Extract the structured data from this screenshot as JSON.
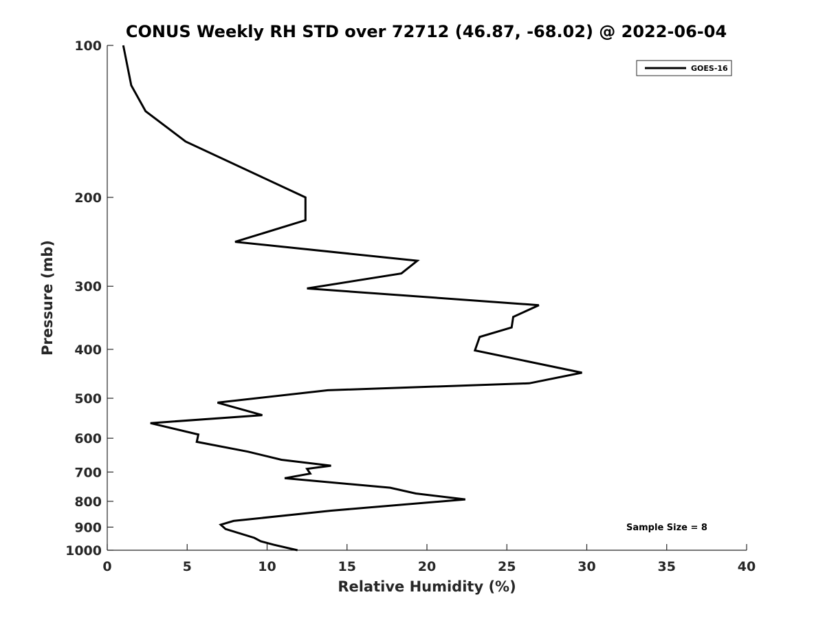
{
  "chart_data": {
    "type": "line",
    "title": "CONUS Weekly RH STD over 72712 (46.87, -68.02) @ 2022-06-04",
    "xlabel": "Relative Humidity (%)",
    "ylabel": "Pressure (mb)",
    "xlim": [
      0,
      40
    ],
    "ylim": [
      100,
      1000
    ],
    "y_scale": "log",
    "y_reversed": true,
    "x_ticks": [
      0,
      5,
      10,
      15,
      20,
      25,
      30,
      35,
      40
    ],
    "y_ticks": [
      100,
      200,
      300,
      400,
      500,
      600,
      700,
      800,
      900,
      1000
    ],
    "legend_position": "top-right",
    "series": [
      {
        "name": "GOES-16",
        "color": "#000000",
        "points": [
          [
            1.0,
            100
          ],
          [
            1.5,
            120
          ],
          [
            2.4,
            135
          ],
          [
            4.9,
            155
          ],
          [
            12.4,
            200
          ],
          [
            12.4,
            222
          ],
          [
            8.0,
            245
          ],
          [
            19.4,
            267
          ],
          [
            18.4,
            283
          ],
          [
            12.5,
            303
          ],
          [
            27.0,
            327
          ],
          [
            25.4,
            345
          ],
          [
            25.3,
            362
          ],
          [
            23.3,
            378
          ],
          [
            23.0,
            402
          ],
          [
            29.7,
            445
          ],
          [
            26.4,
            467
          ],
          [
            13.8,
            482
          ],
          [
            6.9,
            510
          ],
          [
            9.7,
            540
          ],
          [
            2.7,
            560
          ],
          [
            5.7,
            590
          ],
          [
            5.6,
            610
          ],
          [
            8.8,
            638
          ],
          [
            10.9,
            662
          ],
          [
            14.0,
            680
          ],
          [
            12.5,
            690
          ],
          [
            12.7,
            705
          ],
          [
            11.1,
            720
          ],
          [
            17.7,
            752
          ],
          [
            19.3,
            772
          ],
          [
            22.4,
            793
          ],
          [
            14.0,
            835
          ],
          [
            7.9,
            875
          ],
          [
            7.1,
            890
          ],
          [
            7.4,
            908
          ],
          [
            9.2,
            945
          ],
          [
            9.6,
            960
          ],
          [
            10.4,
            975
          ],
          [
            11.9,
            1000
          ]
        ]
      }
    ],
    "annotation": "Sample Size = 8"
  }
}
